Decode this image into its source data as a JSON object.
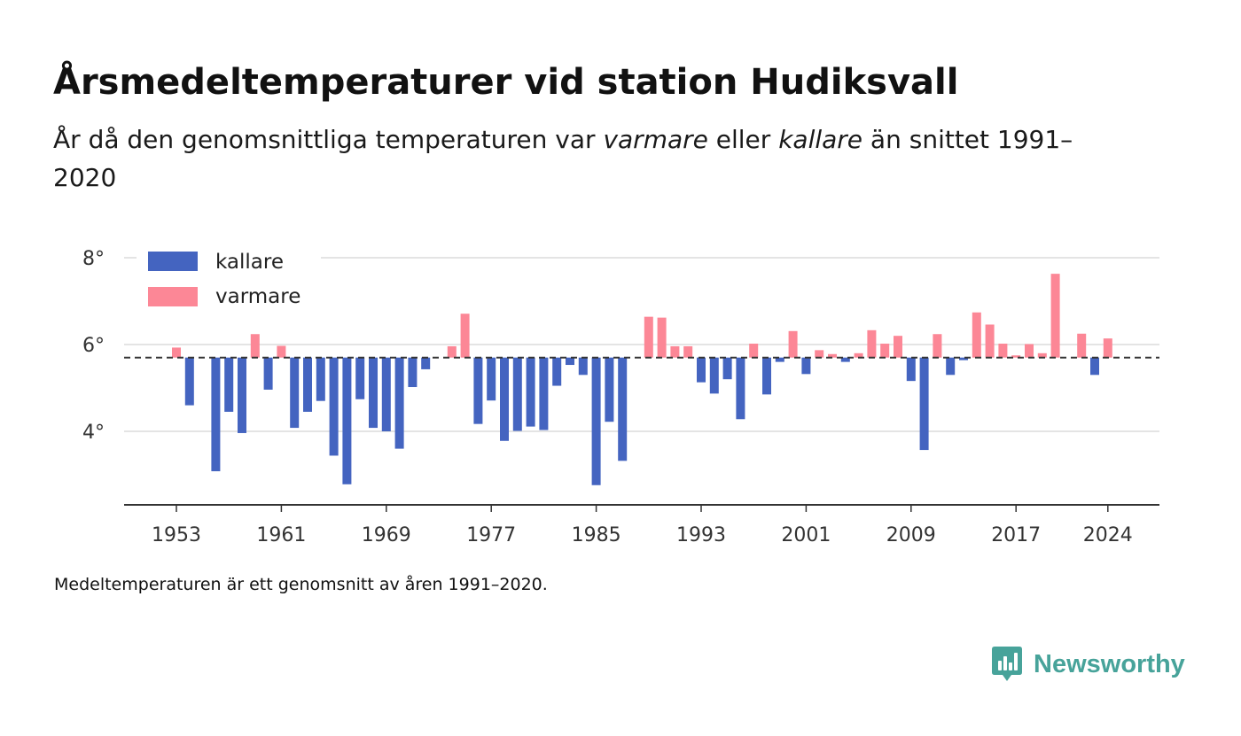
{
  "header": {
    "title": "Årsmedeltemperaturer vid station Hudiksvall",
    "subtitle_part1": "År då den genomsnittliga temperaturen var ",
    "subtitle_em1": "varmare",
    "subtitle_part2": " eller ",
    "subtitle_em2": "kallare",
    "subtitle_part3": " än snittet 1991–2020"
  },
  "footnote": "Medeltemperaturen är ett genomsnitt av åren 1991–2020.",
  "brand": {
    "name": "Newsworthy",
    "icon": "newsworthy-logo-icon",
    "color": "#47a39a"
  },
  "chart_data": {
    "type": "bar",
    "baseline": 5.7,
    "baseline_style": "dashed",
    "ylim": [
      2.4,
      8.3
    ],
    "xlim": [
      1949,
      2028
    ],
    "grid": true,
    "legend_position": "top-left",
    "y_ticks": [
      {
        "value": 4,
        "label": "4°"
      },
      {
        "value": 6,
        "label": "6°"
      },
      {
        "value": 8,
        "label": "8°"
      }
    ],
    "x_ticks": [
      {
        "value": 1953,
        "label": "1953"
      },
      {
        "value": 1961,
        "label": "1961"
      },
      {
        "value": 1969,
        "label": "1969"
      },
      {
        "value": 1977,
        "label": "1977"
      },
      {
        "value": 1985,
        "label": "1985"
      },
      {
        "value": 1993,
        "label": "1993"
      },
      {
        "value": 2001,
        "label": "2001"
      },
      {
        "value": 2009,
        "label": "2009"
      },
      {
        "value": 2017,
        "label": "2017"
      },
      {
        "value": 2024,
        "label": "2024"
      }
    ],
    "series": [
      {
        "name": "kallare",
        "color": "#4464c0"
      },
      {
        "name": "varmare",
        "color": "#fc8796"
      }
    ],
    "x": [
      1953,
      1954,
      1955,
      1956,
      1957,
      1958,
      1959,
      1960,
      1961,
      1962,
      1963,
      1964,
      1965,
      1966,
      1967,
      1968,
      1969,
      1970,
      1971,
      1972,
      1973,
      1974,
      1975,
      1976,
      1977,
      1978,
      1979,
      1980,
      1981,
      1982,
      1983,
      1984,
      1985,
      1986,
      1987,
      1988,
      1989,
      1990,
      1991,
      1992,
      1993,
      1994,
      1995,
      1996,
      1997,
      1998,
      1999,
      2000,
      2001,
      2002,
      2003,
      2004,
      2005,
      2006,
      2007,
      2008,
      2009,
      2010,
      2011,
      2012,
      2013,
      2014,
      2015,
      2016,
      2017,
      2018,
      2019,
      2020,
      2021,
      2022,
      2023,
      2024
    ],
    "values": [
      5.93,
      4.6,
      5.7,
      3.08,
      4.45,
      3.96,
      6.24,
      4.96,
      5.97,
      4.08,
      4.45,
      4.7,
      3.44,
      2.78,
      4.74,
      4.08,
      4.0,
      3.6,
      5.02,
      5.43,
      5.7,
      5.96,
      6.71,
      4.17,
      4.71,
      3.78,
      4.01,
      4.11,
      4.03,
      5.05,
      5.53,
      5.3,
      2.76,
      4.22,
      3.32,
      5.7,
      6.64,
      6.62,
      5.96,
      5.96,
      5.13,
      4.87,
      5.2,
      4.28,
      6.02,
      4.85,
      5.6,
      6.31,
      5.32,
      5.87,
      5.78,
      5.6,
      5.8,
      6.33,
      6.02,
      6.2,
      5.16,
      3.57,
      6.24,
      5.3,
      5.64,
      6.74,
      6.46,
      6.02,
      5.75,
      6.01,
      5.8,
      7.63,
      5.7,
      6.25,
      5.3,
      6.14
    ]
  }
}
